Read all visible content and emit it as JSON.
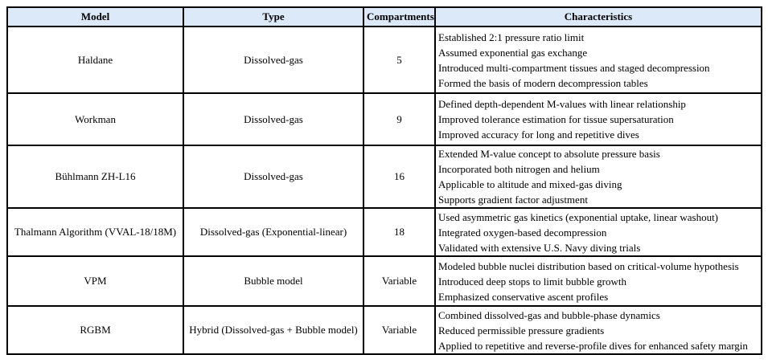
{
  "table": {
    "headers": [
      "Model",
      "Type",
      "Compartments",
      "Characteristics"
    ],
    "rows": [
      {
        "model": "Haldane",
        "type": "Dissolved-gas",
        "compartments": "5",
        "characteristics": [
          "Established 2:1 pressure ratio limit",
          "Assumed exponential gas exchange",
          "Introduced multi-compartment tissues and staged decompression",
          "Formed the basis of modern decompression tables"
        ]
      },
      {
        "model": "Workman",
        "type": "Dissolved-gas",
        "compartments": "9",
        "characteristics": [
          "Defined depth-dependent M-values with linear relationship",
          "Improved tolerance estimation for tissue supersaturation",
          "Improved accuracy for long and repetitive dives"
        ]
      },
      {
        "model": "Bühlmann ZH-L16",
        "type": "Dissolved-gas",
        "compartments": "16",
        "characteristics": [
          "Extended M-value concept to absolute pressure basis",
          "Incorporated both nitrogen and helium",
          "Applicable to altitude and mixed-gas diving",
          "Supports gradient factor adjustment"
        ]
      },
      {
        "model": "Thalmann Algorithm (VVAL-18/18M)",
        "type": "Dissolved-gas (Exponential-linear)",
        "compartments": "18",
        "characteristics": [
          "Used asymmetric gas kinetics (exponential uptake, linear washout)",
          "Integrated oxygen-based decompression",
          "Validated with extensive U.S. Navy diving trials"
        ]
      },
      {
        "model": "VPM",
        "type": "Bubble model",
        "compartments": "Variable",
        "characteristics": [
          "Modeled bubble nuclei distribution based on critical-volume hypothesis",
          "Introduced deep stops to limit bubble growth",
          "Emphasized conservative ascent profiles"
        ]
      },
      {
        "model": "RGBM",
        "type": "Hybrid (Dissolved-gas + Bubble model)",
        "compartments": "Variable",
        "characteristics": [
          "Combined dissolved-gas and bubble-phase dynamics",
          "Reduced permissible pressure gradients",
          "Applied to repetitive and reverse-profile dives for enhanced safety margin"
        ]
      }
    ]
  },
  "colors": {
    "header_bg": "#dbe9f8",
    "border": "#000000"
  }
}
